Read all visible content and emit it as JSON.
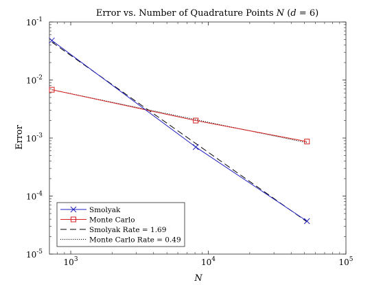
{
  "chart_data": {
    "type": "line",
    "title_parts": {
      "prefix": "Error vs. Number of Quadrature Points ",
      "n_var": "N",
      "open": " (",
      "d_var": "d",
      "eq": " = 6)"
    },
    "xlabel": "N",
    "ylabel": "Error",
    "x_scale": "log",
    "y_scale": "log",
    "xlim": [
      700,
      100000
    ],
    "ylim": [
      1e-05,
      0.1
    ],
    "x_ticks": [
      {
        "value": 1000,
        "base": "10",
        "exp": "3"
      },
      {
        "value": 10000,
        "base": "10",
        "exp": "4"
      },
      {
        "value": 100000,
        "base": "10",
        "exp": "5"
      }
    ],
    "y_ticks": [
      {
        "value": 0.1,
        "base": "10",
        "exp": "-1"
      },
      {
        "value": 0.01,
        "base": "10",
        "exp": "-2"
      },
      {
        "value": 0.001,
        "base": "10",
        "exp": "-3"
      },
      {
        "value": 0.0001,
        "base": "10",
        "exp": "-4"
      },
      {
        "value": 1e-05,
        "base": "10",
        "exp": "-5"
      }
    ],
    "grid": false,
    "legend_position": "bottom-left",
    "series": [
      {
        "name": "Smolyak",
        "color": "#1f1fbf",
        "marker": "x",
        "dash": "solid",
        "x": [
          729,
          8101,
          52097
        ],
        "y": [
          0.048,
          0.0007,
          3.7e-05
        ]
      },
      {
        "name": "Monte Carlo",
        "color": "#d62020",
        "marker": "square",
        "dash": "solid",
        "x": [
          729,
          8101,
          52097
        ],
        "y": [
          0.0068,
          0.002,
          0.00087
        ]
      },
      {
        "name": "Smolyak Rate = 1.69",
        "color": "#000000",
        "marker": "none",
        "dash": "dashed",
        "x": [
          729,
          52097
        ],
        "y": [
          0.045,
          3.6e-05
        ]
      },
      {
        "name": "Monte Carlo Rate = 0.49",
        "color": "#000000",
        "marker": "none",
        "dash": "dotted",
        "x": [
          729,
          52097
        ],
        "y": [
          0.0068,
          0.00083
        ]
      }
    ]
  }
}
